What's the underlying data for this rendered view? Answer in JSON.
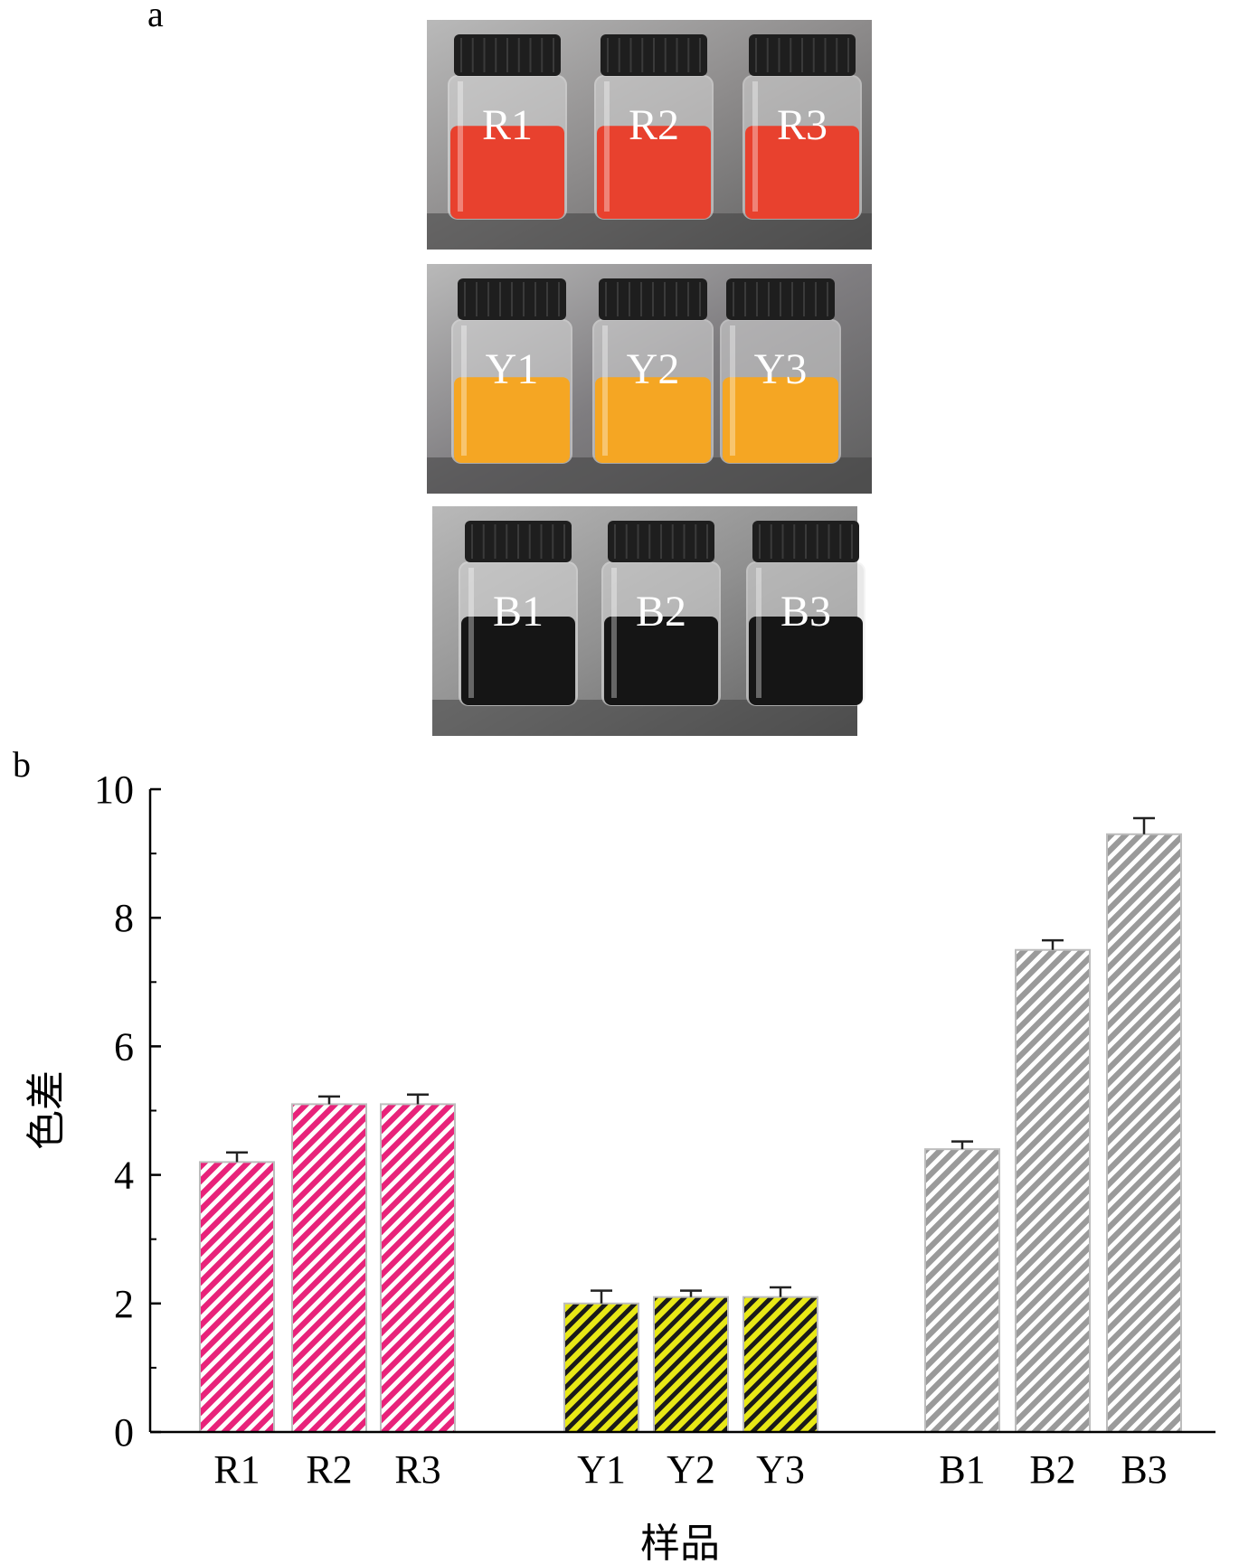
{
  "panels": {
    "a": "a",
    "b": "b"
  },
  "photos": {
    "rows": [
      {
        "labels": [
          "R1",
          "R2",
          "R3"
        ],
        "liquid_color": "#e8412e",
        "bg_color": "#8d8b8b",
        "empty_ratio": 0.35
      },
      {
        "labels": [
          "Y1",
          "Y2",
          "Y3"
        ],
        "liquid_color": "#f5a623",
        "bg_color": "#7f7d80",
        "empty_ratio": 0.4
      },
      {
        "labels": [
          "B1",
          "B2",
          "B3"
        ],
        "liquid_color": "#151515",
        "bg_color": "#909090",
        "empty_ratio": 0.38
      }
    ]
  },
  "chart_data": {
    "type": "bar",
    "categories": [
      "R1",
      "R2",
      "R3",
      "Y1",
      "Y2",
      "Y3",
      "B1",
      "B2",
      "B3"
    ],
    "values": [
      4.2,
      5.1,
      5.1,
      2.0,
      2.1,
      2.1,
      4.4,
      7.5,
      9.3
    ],
    "errors": [
      0.15,
      0.12,
      0.15,
      0.2,
      0.1,
      0.15,
      0.12,
      0.15,
      0.25
    ],
    "groups": [
      {
        "categories": [
          "R1",
          "R2",
          "R3"
        ],
        "fill": "#e8237a",
        "stripe": "#ffffff"
      },
      {
        "categories": [
          "Y1",
          "Y2",
          "Y3"
        ],
        "fill": "#e8e816",
        "stripe": "#1a1a1a"
      },
      {
        "categories": [
          "B1",
          "B2",
          "B3"
        ],
        "fill": "#9a9a9a",
        "stripe": "#ffffff"
      }
    ],
    "xlabel": "样品",
    "ylabel": "色差",
    "ylim": [
      0,
      10
    ],
    "yticks": [
      0,
      2,
      4,
      6,
      8,
      10
    ],
    "grid": false,
    "legend": "none"
  }
}
